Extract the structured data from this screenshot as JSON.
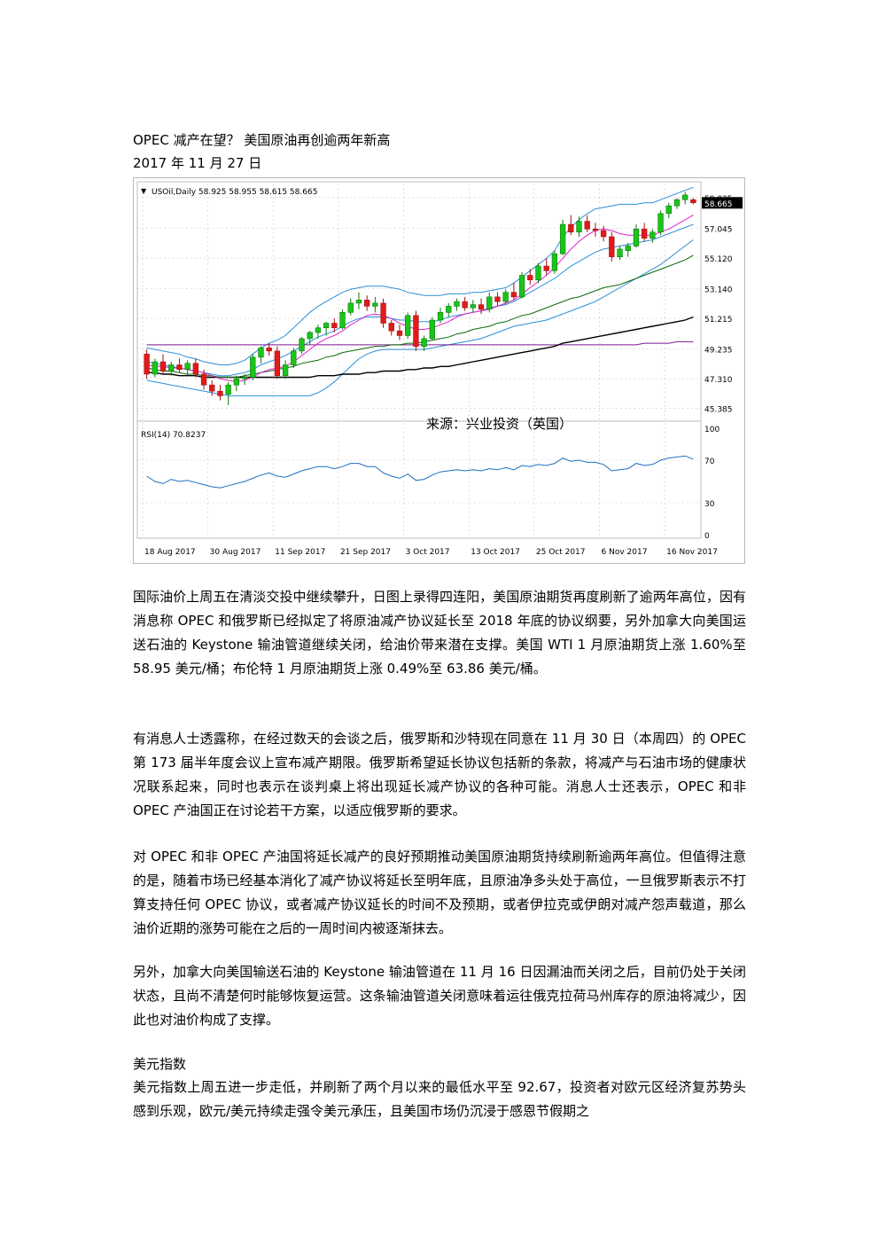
{
  "doc": {
    "title": "OPEC 减产在望？  美国原油再创逾两年新高",
    "date": "2017 年 11 月 27 日",
    "paragraphs": [
      "国际油价上周五在清淡交投中继续攀升，日图上录得四连阳，美国原油期货再度刷新了逾两年高位，因有消息称 OPEC 和俄罗斯已经拟定了将原油减产协议延长至 2018 年底的协议纲要，另外加拿大向美国运送石油的 Keystone 输油管道继续关闭，给油价带来潜在支撑。美国 WTI 1 月原油期货上涨 1.60%至 58.95 美元/桶；布伦特 1 月原油期货上涨 0.49%至 63.86 美元/桶。",
      "有消息人士透露称，在经过数天的会谈之后，俄罗斯和沙特现在同意在 11 月 30 日（本周四）的 OPEC 第 173 届半年度会议上宣布减产期限。俄罗斯希望延长协议包括新的条款，将减产与石油市场的健康状况联系起来，同时也表示在谈判桌上将出现延长减产协议的各种可能。消息人士还表示，OPEC 和非 OPEC 产油国正在讨论若干方案，以适应俄罗斯的要求。",
      "对 OPEC 和非 OPEC 产油国将延长减产的良好预期推动美国原油期货持续刷新逾两年高位。但值得注意的是，随着市场已经基本消化了减产协议将延长至明年底，且原油净多头处于高位，一旦俄罗斯表示不打算支持任何 OPEC 协议，或者减产协议延长的时间不及预期，或者伊拉克或伊朗对减产怨声载道，那么油价近期的涨势可能在之后的一周时间内被逐渐抹去。",
      "另外，加拿大向美国输送石油的 Keystone 输油管道在 11 月 16 日因漏油而关闭之后，目前仍处于关闭状态，且尚不清楚何时能够恢复运营。这条输油管道关闭意味着运往俄克拉荷马州库存的原油将减少，因此也对油价构成了支撑。"
    ],
    "section_title": "美元指数",
    "section_paragraph": "美元指数上周五进一步走低，并刷新了两个月以来的最低水平至 92.67，投资者对欧元区经济复苏势头感到乐观，欧元/美元持续走强令美元承压，且美国市场仍沉浸于感恩节假期之"
  },
  "chart_data": {
    "type": "candlestick",
    "header": "USOil,Daily  58.925 58.955 58.615 58.665",
    "symbol_marker": "▼",
    "current_price_label": "58.665",
    "price_ticks": [
      "59.035",
      "57.045",
      "55.120",
      "53.140",
      "51.215",
      "49.235",
      "47.310",
      "45.385"
    ],
    "ylim": [
      44.9,
      59.6
    ],
    "watermark": "来源：兴业投资（英国）",
    "rsi_label": "RSI(14) 70.8237",
    "rsi_ticks": [
      "100",
      "70",
      "30",
      "0"
    ],
    "x_labels": [
      "18 Aug 2017",
      "30 Aug 2017",
      "11 Sep 2017",
      "21 Sep 2017",
      "3 Oct 2017",
      "13 Oct 2017",
      "25 Oct 2017",
      "6 Nov 2017",
      "16 Nov 2017"
    ],
    "up_color": "#19c519",
    "down_color": "#e21a1a",
    "candles": [
      {
        "o": 48.9,
        "h": 49.2,
        "l": 47.3,
        "c": 47.6
      },
      {
        "o": 47.6,
        "h": 48.6,
        "l": 47.4,
        "c": 48.4
      },
      {
        "o": 48.4,
        "h": 48.9,
        "l": 47.6,
        "c": 47.8
      },
      {
        "o": 47.8,
        "h": 48.4,
        "l": 47.5,
        "c": 48.2
      },
      {
        "o": 48.2,
        "h": 48.6,
        "l": 47.7,
        "c": 47.9
      },
      {
        "o": 47.9,
        "h": 48.5,
        "l": 47.5,
        "c": 48.3
      },
      {
        "o": 48.3,
        "h": 48.6,
        "l": 47.4,
        "c": 47.6
      },
      {
        "o": 47.6,
        "h": 47.9,
        "l": 46.6,
        "c": 46.9
      },
      {
        "o": 46.9,
        "h": 47.2,
        "l": 46.2,
        "c": 46.5
      },
      {
        "o": 46.5,
        "h": 46.9,
        "l": 45.9,
        "c": 46.2
      },
      {
        "o": 46.3,
        "h": 47.1,
        "l": 45.6,
        "c": 46.9
      },
      {
        "o": 46.9,
        "h": 47.5,
        "l": 46.5,
        "c": 47.3
      },
      {
        "o": 47.3,
        "h": 47.6,
        "l": 46.9,
        "c": 47.4
      },
      {
        "o": 47.4,
        "h": 48.9,
        "l": 47.2,
        "c": 48.7
      },
      {
        "o": 48.7,
        "h": 49.4,
        "l": 48.3,
        "c": 49.3
      },
      {
        "o": 49.3,
        "h": 49.6,
        "l": 48.8,
        "c": 49.1
      },
      {
        "o": 49.1,
        "h": 49.4,
        "l": 47.3,
        "c": 47.5
      },
      {
        "o": 47.5,
        "h": 48.5,
        "l": 47.3,
        "c": 48.2
      },
      {
        "o": 48.2,
        "h": 49.3,
        "l": 48.0,
        "c": 49.1
      },
      {
        "o": 49.1,
        "h": 50.0,
        "l": 48.9,
        "c": 49.9
      },
      {
        "o": 49.9,
        "h": 50.4,
        "l": 49.5,
        "c": 50.3
      },
      {
        "o": 50.3,
        "h": 50.8,
        "l": 49.9,
        "c": 50.6
      },
      {
        "o": 50.6,
        "h": 51.0,
        "l": 50.1,
        "c": 50.9
      },
      {
        "o": 50.9,
        "h": 51.2,
        "l": 50.3,
        "c": 50.6
      },
      {
        "o": 50.6,
        "h": 51.8,
        "l": 50.5,
        "c": 51.6
      },
      {
        "o": 51.6,
        "h": 52.5,
        "l": 51.4,
        "c": 52.2
      },
      {
        "o": 52.2,
        "h": 52.9,
        "l": 51.8,
        "c": 52.4
      },
      {
        "o": 52.4,
        "h": 52.7,
        "l": 51.7,
        "c": 52.0
      },
      {
        "o": 52.0,
        "h": 52.6,
        "l": 51.6,
        "c": 52.2
      },
      {
        "o": 52.2,
        "h": 52.5,
        "l": 50.6,
        "c": 50.9
      },
      {
        "o": 50.9,
        "h": 51.1,
        "l": 50.1,
        "c": 50.4
      },
      {
        "o": 50.4,
        "h": 50.8,
        "l": 49.8,
        "c": 50.1
      },
      {
        "o": 50.1,
        "h": 51.6,
        "l": 49.9,
        "c": 51.4
      },
      {
        "o": 51.4,
        "h": 51.7,
        "l": 49.1,
        "c": 49.4
      },
      {
        "o": 49.4,
        "h": 50.1,
        "l": 49.1,
        "c": 49.9
      },
      {
        "o": 49.9,
        "h": 51.3,
        "l": 49.8,
        "c": 51.1
      },
      {
        "o": 51.1,
        "h": 51.9,
        "l": 50.9,
        "c": 51.6
      },
      {
        "o": 51.6,
        "h": 52.2,
        "l": 51.3,
        "c": 52.0
      },
      {
        "o": 52.0,
        "h": 52.5,
        "l": 51.7,
        "c": 52.3
      },
      {
        "o": 52.3,
        "h": 52.6,
        "l": 51.7,
        "c": 51.9
      },
      {
        "o": 51.9,
        "h": 52.4,
        "l": 51.6,
        "c": 52.1
      },
      {
        "o": 52.1,
        "h": 52.5,
        "l": 51.5,
        "c": 51.8
      },
      {
        "o": 51.8,
        "h": 52.9,
        "l": 51.6,
        "c": 52.6
      },
      {
        "o": 52.6,
        "h": 52.9,
        "l": 52.0,
        "c": 52.3
      },
      {
        "o": 52.3,
        "h": 53.1,
        "l": 52.1,
        "c": 52.9
      },
      {
        "o": 52.9,
        "h": 53.5,
        "l": 52.4,
        "c": 52.6
      },
      {
        "o": 52.6,
        "h": 54.2,
        "l": 52.5,
        "c": 54.0
      },
      {
        "o": 54.0,
        "h": 54.4,
        "l": 53.4,
        "c": 53.7
      },
      {
        "o": 53.7,
        "h": 54.8,
        "l": 53.5,
        "c": 54.6
      },
      {
        "o": 54.6,
        "h": 55.1,
        "l": 54.0,
        "c": 54.3
      },
      {
        "o": 54.3,
        "h": 55.6,
        "l": 54.1,
        "c": 55.4
      },
      {
        "o": 55.4,
        "h": 57.6,
        "l": 55.3,
        "c": 57.3
      },
      {
        "o": 57.3,
        "h": 57.9,
        "l": 56.6,
        "c": 56.8
      },
      {
        "o": 56.8,
        "h": 57.8,
        "l": 56.5,
        "c": 57.5
      },
      {
        "o": 57.5,
        "h": 57.9,
        "l": 56.8,
        "c": 57.0
      },
      {
        "o": 57.0,
        "h": 57.4,
        "l": 56.5,
        "c": 56.9
      },
      {
        "o": 56.9,
        "h": 57.2,
        "l": 56.2,
        "c": 56.5
      },
      {
        "o": 56.5,
        "h": 56.8,
        "l": 54.9,
        "c": 55.2
      },
      {
        "o": 55.2,
        "h": 55.9,
        "l": 55.0,
        "c": 55.7
      },
      {
        "o": 55.6,
        "h": 56.1,
        "l": 55.2,
        "c": 55.9
      },
      {
        "o": 55.9,
        "h": 57.3,
        "l": 55.8,
        "c": 57.0
      },
      {
        "o": 57.0,
        "h": 57.4,
        "l": 56.2,
        "c": 56.4
      },
      {
        "o": 56.4,
        "h": 57.0,
        "l": 56.1,
        "c": 56.8
      },
      {
        "o": 56.8,
        "h": 58.2,
        "l": 56.6,
        "c": 58.0
      },
      {
        "o": 58.0,
        "h": 58.7,
        "l": 57.7,
        "c": 58.5
      },
      {
        "o": 58.5,
        "h": 59.0,
        "l": 58.3,
        "c": 58.9
      },
      {
        "o": 58.9,
        "h": 59.4,
        "l": 58.6,
        "c": 59.2
      },
      {
        "o": 58.9,
        "h": 59.0,
        "l": 58.6,
        "c": 58.7
      }
    ],
    "overlays": {
      "bollinger_upper": [
        49.3,
        49.2,
        49.1,
        49.0,
        48.9,
        48.7,
        48.6,
        48.4,
        48.3,
        48.2,
        48.2,
        48.3,
        48.5,
        48.9,
        49.3,
        49.6,
        49.8,
        50.1,
        50.6,
        51.1,
        51.6,
        52.0,
        52.3,
        52.6,
        52.9,
        53.1,
        53.2,
        53.3,
        53.3,
        53.3,
        53.2,
        53.1,
        52.9,
        52.8,
        52.7,
        52.7,
        52.7,
        52.8,
        52.8,
        52.8,
        52.9,
        52.9,
        53.0,
        53.1,
        53.2,
        53.5,
        53.9,
        54.3,
        54.7,
        55.1,
        55.6,
        56.5,
        57.1,
        57.6,
        58.0,
        58.3,
        58.4,
        58.5,
        58.6,
        58.6,
        58.6,
        58.7,
        58.7,
        58.9,
        59.1,
        59.3,
        59.5,
        59.7
      ],
      "bollinger_mid": [
        48.4,
        48.3,
        48.2,
        48.1,
        48.0,
        47.9,
        47.8,
        47.7,
        47.6,
        47.5,
        47.5,
        47.6,
        47.7,
        47.9,
        48.2,
        48.4,
        48.6,
        48.8,
        49.1,
        49.4,
        49.7,
        50.0,
        50.2,
        50.4,
        50.7,
        51.0,
        51.2,
        51.3,
        51.3,
        51.3,
        51.2,
        51.1,
        51.1,
        51.0,
        51.0,
        51.0,
        51.1,
        51.3,
        51.4,
        51.5,
        51.6,
        51.7,
        51.9,
        52.0,
        52.1,
        52.3,
        52.6,
        52.9,
        53.2,
        53.5,
        53.8,
        54.2,
        54.6,
        54.9,
        55.2,
        55.5,
        55.7,
        55.8,
        55.9,
        56.0,
        56.1,
        56.2,
        56.3,
        56.5,
        56.7,
        56.9,
        57.1,
        57.3
      ],
      "bollinger_lower": [
        47.2,
        47.1,
        47.0,
        46.9,
        46.8,
        46.7,
        46.6,
        46.5,
        46.4,
        46.3,
        46.2,
        46.2,
        46.2,
        46.2,
        46.2,
        46.2,
        46.2,
        46.2,
        46.2,
        46.2,
        46.2,
        46.4,
        46.7,
        47.1,
        47.6,
        48.1,
        48.6,
        48.9,
        49.1,
        49.2,
        49.2,
        49.2,
        49.2,
        49.2,
        49.2,
        49.3,
        49.4,
        49.5,
        49.6,
        49.7,
        49.8,
        49.9,
        50.1,
        50.3,
        50.5,
        50.7,
        50.8,
        50.9,
        51.0,
        51.1,
        51.3,
        51.5,
        51.7,
        51.9,
        52.1,
        52.3,
        52.6,
        52.9,
        53.2,
        53.5,
        53.8,
        54.1,
        54.4,
        54.7,
        55.1,
        55.5,
        55.9,
        56.3
      ],
      "ma_fast": [
        48.2,
        48.1,
        48.1,
        48.0,
        48.0,
        47.9,
        47.8,
        47.7,
        47.5,
        47.3,
        47.2,
        47.1,
        47.2,
        47.4,
        47.7,
        47.9,
        48.0,
        48.1,
        48.4,
        48.8,
        49.2,
        49.6,
        49.9,
        50.1,
        50.4,
        50.8,
        51.1,
        51.4,
        51.5,
        51.4,
        51.2,
        50.9,
        50.7,
        50.5,
        50.5,
        50.6,
        50.8,
        51.0,
        51.3,
        51.5,
        51.6,
        51.7,
        51.8,
        52.0,
        52.2,
        52.4,
        52.8,
        53.2,
        53.6,
        54.0,
        54.5,
        55.1,
        55.7,
        56.2,
        56.6,
        56.9,
        57.0,
        56.9,
        56.7,
        56.6,
        56.6,
        56.6,
        56.6,
        56.8,
        57.0,
        57.3,
        57.6,
        57.9
      ],
      "ma_mid": [
        48.0,
        47.9,
        47.8,
        47.8,
        47.7,
        47.6,
        47.6,
        47.5,
        47.5,
        47.4,
        47.4,
        47.4,
        47.5,
        47.6,
        47.7,
        47.8,
        47.9,
        48.0,
        48.1,
        48.3,
        48.4,
        48.5,
        48.7,
        48.8,
        49.0,
        49.1,
        49.2,
        49.3,
        49.4,
        49.4,
        49.5,
        49.5,
        49.6,
        49.6,
        49.7,
        49.8,
        49.9,
        50.0,
        50.2,
        50.3,
        50.5,
        50.6,
        50.7,
        50.9,
        51.0,
        51.2,
        51.4,
        51.5,
        51.7,
        51.9,
        52.1,
        52.3,
        52.5,
        52.6,
        52.8,
        53.0,
        53.2,
        53.3,
        53.4,
        53.6,
        53.8,
        54.0,
        54.2,
        54.4,
        54.6,
        54.8,
        55.0,
        55.3
      ],
      "ma_slow": [
        47.7,
        47.7,
        47.6,
        47.6,
        47.5,
        47.5,
        47.5,
        47.4,
        47.4,
        47.4,
        47.4,
        47.4,
        47.4,
        47.4,
        47.4,
        47.4,
        47.4,
        47.4,
        47.4,
        47.4,
        47.4,
        47.5,
        47.5,
        47.5,
        47.6,
        47.6,
        47.6,
        47.7,
        47.7,
        47.8,
        47.8,
        47.8,
        47.9,
        47.9,
        48.0,
        48.0,
        48.1,
        48.1,
        48.2,
        48.3,
        48.4,
        48.5,
        48.6,
        48.7,
        48.8,
        48.9,
        49.0,
        49.1,
        49.2,
        49.3,
        49.4,
        49.6,
        49.7,
        49.8,
        49.9,
        50.0,
        50.1,
        50.2,
        50.3,
        50.4,
        50.5,
        50.6,
        50.7,
        50.8,
        50.9,
        51.0,
        51.1,
        51.3
      ],
      "ma_flat": [
        49.5,
        49.5,
        49.5,
        49.5,
        49.5,
        49.5,
        49.5,
        49.5,
        49.5,
        49.5,
        49.5,
        49.5,
        49.5,
        49.5,
        49.5,
        49.5,
        49.5,
        49.5,
        49.5,
        49.5,
        49.5,
        49.5,
        49.5,
        49.5,
        49.5,
        49.5,
        49.5,
        49.5,
        49.5,
        49.5,
        49.5,
        49.5,
        49.5,
        49.5,
        49.5,
        49.5,
        49.5,
        49.5,
        49.5,
        49.5,
        49.5,
        49.5,
        49.5,
        49.5,
        49.5,
        49.5,
        49.5,
        49.5,
        49.5,
        49.5,
        49.5,
        49.5,
        49.5,
        49.5,
        49.5,
        49.5,
        49.5,
        49.5,
        49.5,
        49.5,
        49.5,
        49.6,
        49.6,
        49.6,
        49.6,
        49.7,
        49.7,
        49.7
      ]
    },
    "overlay_colors": {
      "bollinger_upper": "#2b8fd6",
      "bollinger_mid": "#2b8fd6",
      "bollinger_lower": "#2b8fd6",
      "ma_fast": "#e020d0",
      "ma_mid": "#0a6a0a",
      "ma_slow": "#000000",
      "ma_flat": "#7a1a90"
    },
    "rsi_color": "#1e6fbf",
    "rsi_values": [
      55,
      50,
      48,
      52,
      50,
      51,
      49,
      47,
      45,
      44,
      46,
      48,
      50,
      53,
      56,
      58,
      55,
      54,
      57,
      60,
      62,
      64,
      64,
      62,
      64,
      67,
      67,
      64,
      64,
      58,
      55,
      53,
      57,
      51,
      52,
      56,
      59,
      60,
      61,
      60,
      61,
      60,
      62,
      61,
      63,
      61,
      65,
      64,
      66,
      65,
      67,
      72,
      69,
      70,
      68,
      68,
      66,
      60,
      61,
      62,
      67,
      65,
      66,
      70,
      72,
      73,
      74,
      71
    ]
  }
}
